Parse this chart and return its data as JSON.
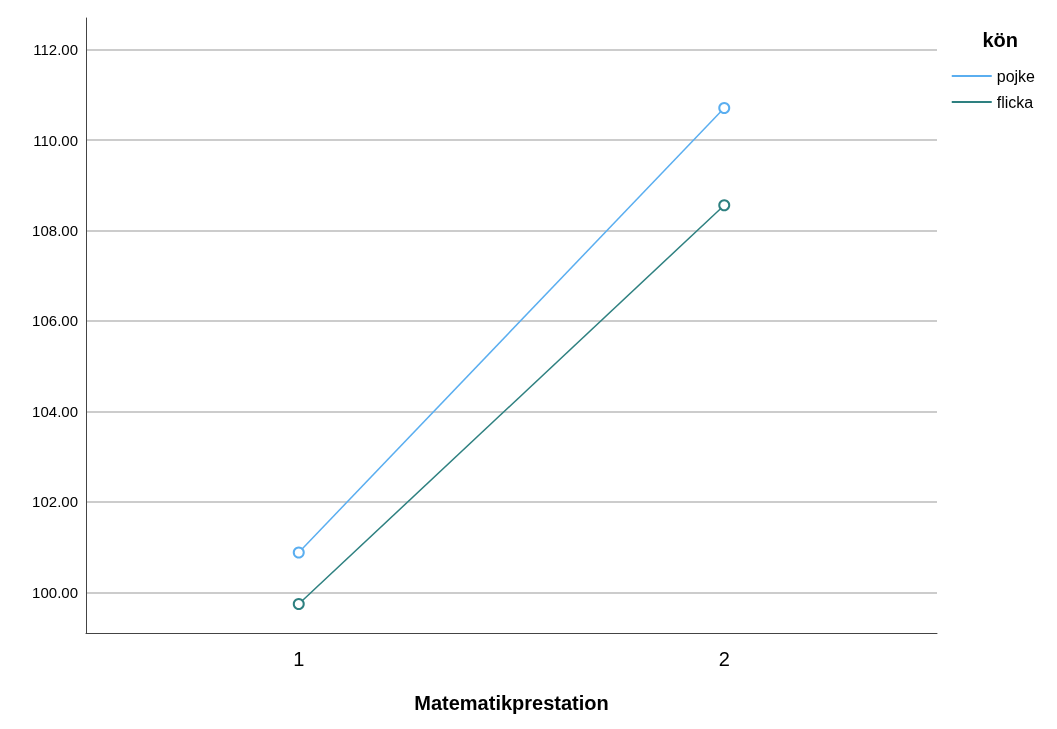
{
  "chart_data": {
    "type": "line",
    "xlabel": "Matematikprestation",
    "legend_title": "kön",
    "categories": [
      "1",
      "2"
    ],
    "series": [
      {
        "name": "pojke",
        "color": "#5aaef0",
        "values": [
          100.88,
          110.71
        ]
      },
      {
        "name": "flicka",
        "color": "#2e8080",
        "values": [
          99.74,
          108.56
        ]
      }
    ],
    "ylim": [
      99.1,
      112.7
    ],
    "yticks": [
      {
        "value": 100,
        "label": "100.00"
      },
      {
        "value": 102,
        "label": "102.00"
      },
      {
        "value": 104,
        "label": "104.00"
      },
      {
        "value": 106,
        "label": "106.00"
      },
      {
        "value": 108,
        "label": "108.00"
      },
      {
        "value": 110,
        "label": "110.00"
      },
      {
        "value": 112,
        "label": "112.00"
      }
    ],
    "grid": "y",
    "legend": "top right",
    "marker": "circle",
    "line_style": "solid"
  }
}
